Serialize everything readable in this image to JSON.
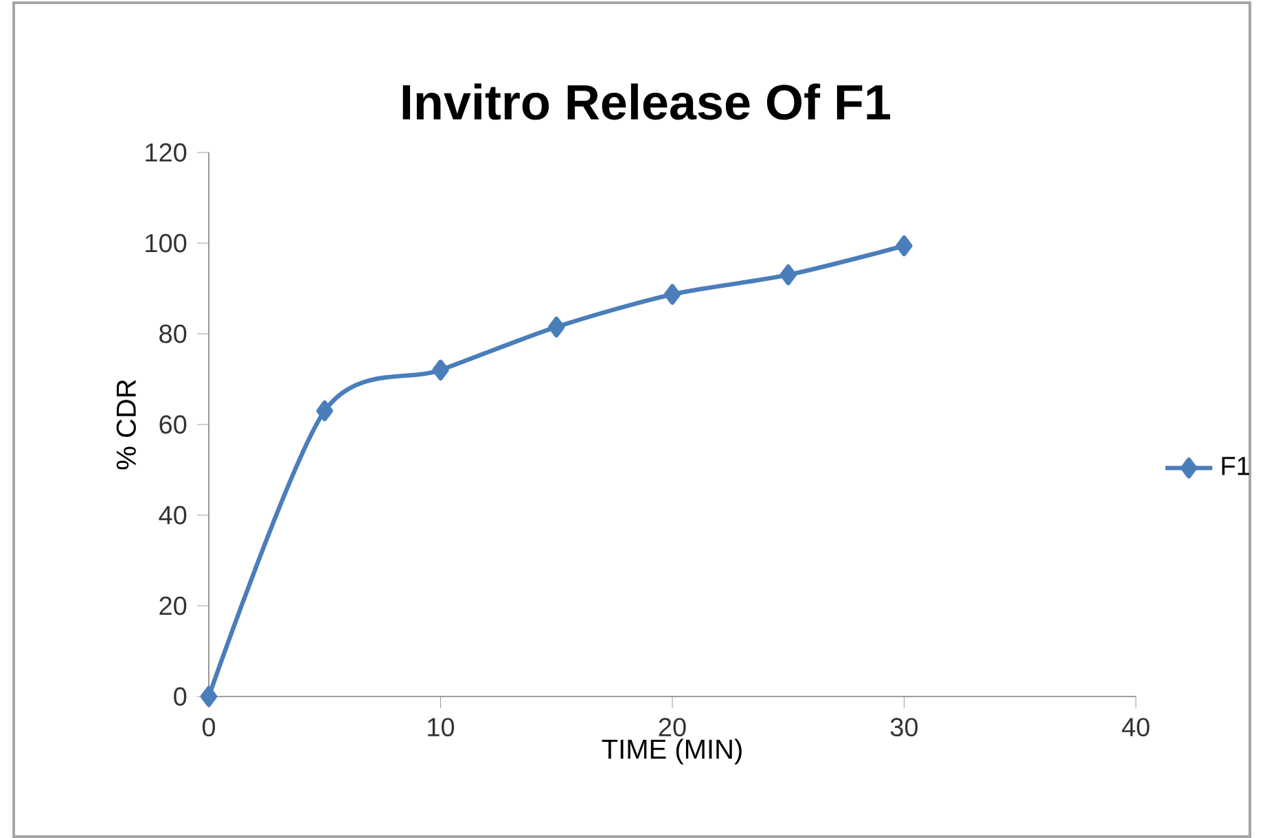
{
  "chart_data": {
    "type": "line",
    "title": "Invitro Release Of F1",
    "xlabel": "TIME (MIN)",
    "ylabel": "% CDR",
    "x": [
      0,
      5,
      10,
      15,
      20,
      25,
      30
    ],
    "series": [
      {
        "name": "F1",
        "color": "#4a7ebb",
        "values": [
          0,
          63,
          72,
          81.5,
          88.7,
          93,
          99.4
        ]
      }
    ],
    "xlim": [
      0,
      40
    ],
    "xticks": [
      0,
      10,
      20,
      30,
      40
    ],
    "ylim": [
      0,
      120
    ],
    "yticks": [
      0,
      20,
      40,
      60,
      80,
      100,
      120
    ],
    "grid": false,
    "legend": "right",
    "marker": "diamond",
    "line_style": "solid"
  }
}
